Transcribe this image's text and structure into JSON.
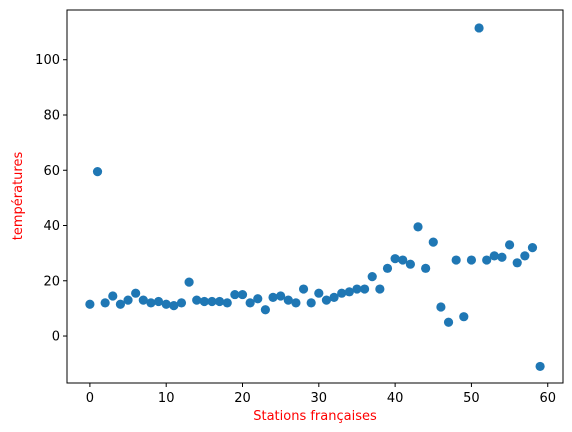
{
  "chart_data": {
    "type": "scatter",
    "title": "",
    "xlabel": "Stations françaises",
    "ylabel": "températures",
    "label_color": "#ff0000",
    "marker_color": "#1f77b4",
    "xlim": [
      -3,
      62
    ],
    "ylim": [
      -17,
      118
    ],
    "xticks": [
      0,
      10,
      20,
      30,
      40,
      50,
      60
    ],
    "yticks": [
      0,
      20,
      40,
      60,
      80,
      100
    ],
    "grid": false,
    "x": [
      0,
      1,
      2,
      3,
      4,
      5,
      6,
      7,
      8,
      9,
      10,
      11,
      12,
      13,
      14,
      15,
      16,
      17,
      18,
      19,
      20,
      21,
      22,
      23,
      24,
      25,
      26,
      27,
      28,
      29,
      30,
      31,
      32,
      33,
      34,
      35,
      36,
      37,
      38,
      39,
      40,
      41,
      42,
      43,
      44,
      45,
      46,
      47,
      48,
      49,
      50,
      51,
      52,
      53,
      54,
      55,
      56,
      57,
      58,
      59
    ],
    "y": [
      11.5,
      59.5,
      12,
      14.5,
      11.5,
      13,
      15.5,
      13,
      12,
      12.5,
      11.5,
      11,
      12,
      19.5,
      13,
      12.5,
      12.5,
      12.5,
      12,
      15,
      15,
      12,
      13.5,
      9.5,
      14,
      14.5,
      13,
      12,
      17,
      12,
      15.5,
      13,
      14,
      15.5,
      16,
      17,
      17,
      21.5,
      17,
      24.5,
      28,
      27.5,
      26,
      39.5,
      24.5,
      34,
      10.5,
      5,
      27.5,
      7,
      27.5,
      111.5,
      27.5,
      29,
      28.5,
      33,
      26.5,
      29,
      32,
      -11
    ]
  }
}
